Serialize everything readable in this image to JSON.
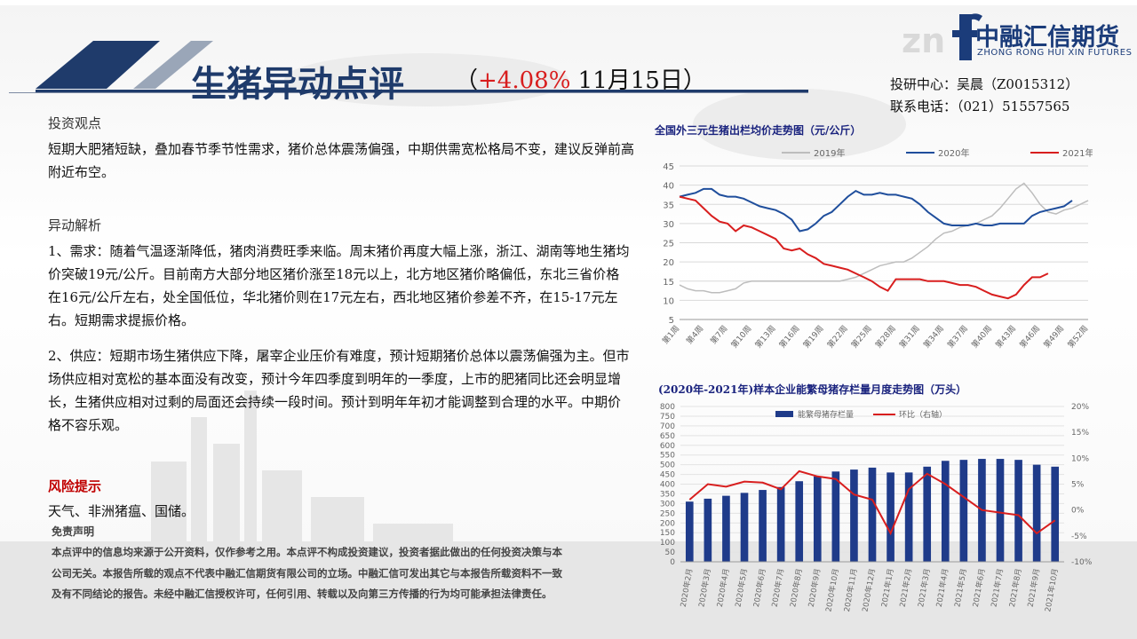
{
  "header": {
    "title": "生猪异动点评",
    "paren_open": "（",
    "pct": "+4.08%",
    "date": "11月15日",
    "paren_close": "）",
    "logo_cn": "中融汇信期货",
    "logo_en": "ZHONG RONG HUI XIN FUTURES",
    "contact_1": "投研中心：吴晨（Z0015312）",
    "contact_2": "联系电话：（021）51557565",
    "brand_color": "#1f3b6b",
    "accent_red": "#d81e1e"
  },
  "view": {
    "title": "投资观点",
    "text": "短期大肥猪短缺，叠加春节季节性需求，猪价总体震荡偏强，中期供需宽松格局不变，建议反弹前高附近布空。"
  },
  "analysis": {
    "title": "异动解析",
    "p1": "1、需求：随着气温逐渐降低，猪肉消费旺季来临。周末猪价再度大幅上涨，浙江、湖南等地生猪均价突破19元/公斤。目前南方大部分地区猪价涨至18元以上，北方地区猪价略偏低，东北三省价格在16元/公斤左右，处全国低位，华北猪价则在17元左右，西北地区猪价参差不齐，在15-17元左右。短期需求提振价格。",
    "p2": "2、供应：短期市场生猪供应下降，屠宰企业压价有难度，预计短期猪价总体以震荡偏强为主。但市场供应相对宽松的基本面没有改变，预计今年四季度到明年的一季度，上市的肥猪同比还会明显增长，生猪供应相对过剩的局面还会持续一段时间。预计到明年年初才能调整到合理的水平。中期价格不容乐观。"
  },
  "risk": {
    "title": "风险提示",
    "text": "天气、非洲猪瘟、国储。"
  },
  "disclaimer": {
    "title": "免责声明",
    "text": "本点评中的信息均来源于公开资料，仅作参考之用。本点评不构成投资建议，投资者据此做出的任何投资决策与本公司无关。本报告所载的观点不代表中融汇信期货有限公司的立场。中融汇信可发出其它与本报告所载资料不一致及有不同结论的报告。未经中融汇信授权许可，任何引用、转载以及向第三方传播的行为均可能承担法律责任。"
  },
  "chart_data": [
    {
      "type": "line",
      "title": "全国外三元生猪出栏均价走势图（元/公斤）",
      "ylim": [
        5,
        45
      ],
      "yticks": [
        5,
        10,
        15,
        20,
        25,
        30,
        35,
        40,
        45
      ],
      "grid": true,
      "legend_position": "top",
      "x_tick_labels": [
        "第1周",
        "第4周",
        "第7周",
        "第10周",
        "第13周",
        "第16周",
        "第19周",
        "第22周",
        "第25周",
        "第28周",
        "第31周",
        "第34周",
        "第37周",
        "第40周",
        "第43周",
        "第46周",
        "第49周",
        "第52周"
      ],
      "series": [
        {
          "name": "2019年",
          "color": "#bdbdbd",
          "values": [
            14,
            13,
            12.5,
            12.5,
            12,
            12,
            12.5,
            13,
            14.5,
            15,
            15,
            15,
            15,
            15,
            15,
            15,
            15,
            15,
            15,
            15,
            15,
            15.5,
            16,
            17,
            18,
            19,
            19.5,
            20,
            20,
            21,
            22.5,
            24,
            26,
            27.5,
            28,
            29,
            29.5,
            30,
            31,
            32,
            34,
            36.5,
            39,
            40.5,
            38,
            35,
            33,
            32.5,
            33.5,
            34,
            35,
            36
          ]
        },
        {
          "name": "2020年",
          "color": "#1f4e9c",
          "values": [
            37,
            37.5,
            38,
            39,
            39,
            37.5,
            37,
            37,
            36.5,
            35.5,
            34.5,
            34,
            33.5,
            32.5,
            31,
            28,
            28.5,
            30,
            32,
            33,
            35,
            37,
            38.5,
            37.5,
            37.5,
            38,
            37.5,
            37.5,
            37,
            36.5,
            35,
            33,
            31.5,
            30,
            29.5,
            29.5,
            29.5,
            30,
            29.5,
            29.5,
            30,
            30,
            30,
            30,
            32,
            33,
            33.5,
            34,
            34.5,
            36
          ]
        },
        {
          "name": "2021年",
          "color": "#d81e1e",
          "values": [
            37,
            36.5,
            36,
            34,
            32,
            30.5,
            30,
            28,
            29.5,
            29,
            28,
            27,
            26,
            23.5,
            23,
            23.5,
            22,
            21,
            19.5,
            19,
            18.5,
            18,
            17,
            16,
            15,
            13.5,
            12.5,
            15.5,
            15.5,
            15.5,
            15.5,
            15,
            15,
            15,
            14.5,
            14,
            14,
            13.5,
            12.5,
            11.5,
            11,
            10.5,
            11.5,
            14,
            16,
            16,
            17
          ]
        }
      ]
    },
    {
      "type": "bar",
      "title": "(2020年-2021年)样本企业能繁母猪存栏量月度走势图（万头）",
      "ylim": [
        0,
        800
      ],
      "y2lim": [
        -10,
        20
      ],
      "yticks": [
        0,
        50,
        100,
        150,
        200,
        250,
        300,
        350,
        400,
        450,
        500,
        550,
        600,
        650,
        700,
        750,
        800
      ],
      "y2ticks": [
        "-10%",
        "-5%",
        "0%",
        "5%",
        "10%",
        "15%",
        "20%"
      ],
      "legend_position": "top",
      "categories": [
        "2020年2月",
        "2020年3月",
        "2020年4月",
        "2020年5月",
        "2020年6月",
        "2020年7月",
        "2020年8月",
        "2020年9月",
        "2020年10月",
        "2020年11月",
        "2020年12月",
        "2021年1月",
        "2021年2月",
        "2021年3月",
        "2021年4月",
        "2021年5月",
        "2021年6月",
        "2021年7月",
        "2021年8月",
        "2021年9月",
        "2021年10月"
      ],
      "series": [
        {
          "name": "能繁母猪存栏量",
          "color": "#1f3b8a",
          "values": [
            310,
            325,
            340,
            355,
            370,
            385,
            415,
            440,
            465,
            475,
            485,
            460,
            460,
            490,
            520,
            525,
            530,
            530,
            525,
            500,
            490
          ]
        },
        {
          "name": "环比（右轴）",
          "color": "#d81e1e",
          "axis": "right",
          "values": [
            2,
            5,
            4.5,
            5.5,
            5.3,
            4,
            7.5,
            6.5,
            6,
            3,
            2,
            -4.5,
            4,
            7,
            5,
            2.5,
            0,
            -0.5,
            -1,
            -4.5,
            -2
          ]
        }
      ]
    }
  ]
}
